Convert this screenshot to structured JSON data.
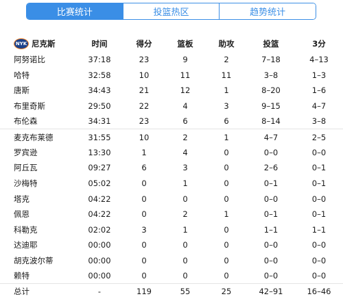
{
  "tabs": [
    {
      "label": "比赛统计",
      "active": true
    },
    {
      "label": "投篮热区",
      "active": false
    },
    {
      "label": "趋势统计",
      "active": false
    }
  ],
  "team": {
    "name": "尼克斯",
    "logo_text": "NYK"
  },
  "columns": [
    "时间",
    "得分",
    "篮板",
    "助攻",
    "投篮",
    "3分"
  ],
  "players": [
    {
      "name": "阿努诺比",
      "time": "37:18",
      "pts": "23",
      "reb": "9",
      "ast": "2",
      "fg": "7–18",
      "tp": "4–13"
    },
    {
      "name": "哈特",
      "time": "32:58",
      "pts": "10",
      "reb": "11",
      "ast": "11",
      "fg": "3–8",
      "tp": "1–3"
    },
    {
      "name": "唐斯",
      "time": "34:43",
      "pts": "21",
      "reb": "12",
      "ast": "1",
      "fg": "8–20",
      "tp": "1–6"
    },
    {
      "name": "布里奇斯",
      "time": "29:50",
      "pts": "22",
      "reb": "4",
      "ast": "3",
      "fg": "9–15",
      "tp": "4–7"
    },
    {
      "name": "布伦森",
      "time": "34:31",
      "pts": "23",
      "reb": "6",
      "ast": "6",
      "fg": "8–14",
      "tp": "3–8"
    },
    {
      "name": "麦克布莱德",
      "time": "31:55",
      "pts": "10",
      "reb": "2",
      "ast": "1",
      "fg": "4–7",
      "tp": "2–5"
    },
    {
      "name": "罗宾逊",
      "time": "13:30",
      "pts": "1",
      "reb": "4",
      "ast": "0",
      "fg": "0–0",
      "tp": "0–0"
    },
    {
      "name": "阿丘瓦",
      "time": "09:27",
      "pts": "6",
      "reb": "3",
      "ast": "0",
      "fg": "2–6",
      "tp": "0–1"
    },
    {
      "name": "沙梅特",
      "time": "05:02",
      "pts": "0",
      "reb": "1",
      "ast": "0",
      "fg": "0–1",
      "tp": "0–1"
    },
    {
      "name": "塔克",
      "time": "04:22",
      "pts": "0",
      "reb": "0",
      "ast": "0",
      "fg": "0–0",
      "tp": "0–0"
    },
    {
      "name": "佩恩",
      "time": "04:22",
      "pts": "0",
      "reb": "2",
      "ast": "1",
      "fg": "0–1",
      "tp": "0–1"
    },
    {
      "name": "科勒克",
      "time": "02:02",
      "pts": "3",
      "reb": "1",
      "ast": "0",
      "fg": "1–1",
      "tp": "1–1"
    },
    {
      "name": "达迪耶",
      "time": "00:00",
      "pts": "0",
      "reb": "0",
      "ast": "0",
      "fg": "0–0",
      "tp": "0–0"
    },
    {
      "name": "胡克波尔蒂",
      "time": "00:00",
      "pts": "0",
      "reb": "0",
      "ast": "0",
      "fg": "0–0",
      "tp": "0–0"
    },
    {
      "name": "赖特",
      "time": "00:00",
      "pts": "0",
      "reb": "0",
      "ast": "0",
      "fg": "0–0",
      "tp": "0–0"
    }
  ],
  "totals": {
    "name": "总计",
    "time": "-",
    "pts": "119",
    "reb": "55",
    "ast": "25",
    "fg": "42–91",
    "tp": "16–46"
  },
  "colors": {
    "accent": "#3a8ee6",
    "logo_bg": "#1d428a",
    "logo_ring": "#f58426"
  }
}
